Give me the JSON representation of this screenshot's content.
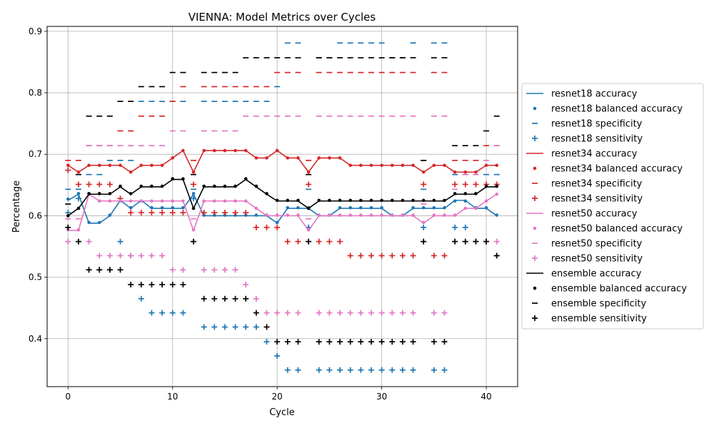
{
  "chart_data": {
    "type": "line",
    "title": "VIENNA: Model Metrics over Cycles",
    "xlabel": "Cycle",
    "ylabel": "Percentage",
    "xlim": [
      -2,
      43
    ],
    "ylim": [
      0.322,
      0.908
    ],
    "xticks": [
      0,
      10,
      20,
      30,
      40
    ],
    "yticks": [
      0.4,
      0.5,
      0.6,
      0.7,
      0.8,
      0.9
    ],
    "grid": true,
    "legend_position": "right",
    "x": [
      0,
      1,
      2,
      3,
      4,
      5,
      6,
      7,
      8,
      9,
      10,
      11,
      12,
      13,
      14,
      15,
      16,
      17,
      18,
      19,
      20,
      21,
      22,
      23,
      24,
      25,
      26,
      27,
      28,
      29,
      30,
      31,
      32,
      33,
      34,
      35,
      36,
      37,
      38,
      39,
      40,
      41
    ],
    "series": [
      {
        "model": "resnet18",
        "color": "#1f77b4",
        "accuracy": [
          0.625,
          0.635,
          0.588,
          0.588,
          0.6,
          0.625,
          0.612,
          0.625,
          0.612,
          0.612,
          0.612,
          0.612,
          0.635,
          0.6,
          0.6,
          0.6,
          0.6,
          0.6,
          0.6,
          0.6,
          0.588,
          0.612,
          0.612,
          0.612,
          0.6,
          0.6,
          0.612,
          0.612,
          0.612,
          0.612,
          0.612,
          0.6,
          0.6,
          0.612,
          0.612,
          0.612,
          0.612,
          0.625,
          0.625,
          0.612,
          0.612,
          0.6
        ],
        "balanced_accuracy": [
          0.627,
          0.636,
          0.589,
          0.589,
          0.601,
          0.624,
          0.613,
          0.624,
          0.613,
          0.613,
          0.613,
          0.613,
          0.636,
          0.601,
          0.601,
          0.601,
          0.601,
          0.601,
          0.601,
          0.601,
          0.589,
          0.613,
          0.613,
          0.613,
          0.601,
          0.601,
          0.613,
          0.613,
          0.613,
          0.613,
          0.613,
          0.601,
          0.601,
          0.613,
          0.613,
          0.613,
          0.613,
          0.624,
          0.624,
          0.613,
          0.613,
          0.601
        ],
        "specificity": [
          0.643,
          0.643,
          0.667,
          0.667,
          0.69,
          0.69,
          0.69,
          0.786,
          0.786,
          0.786,
          0.786,
          0.786,
          0.643,
          0.786,
          0.786,
          0.786,
          0.786,
          0.786,
          0.786,
          0.786,
          0.81,
          0.881,
          0.881,
          0.643,
          0.857,
          0.857,
          0.881,
          0.881,
          0.881,
          0.881,
          0.881,
          0.857,
          0.857,
          0.881,
          0.643,
          0.881,
          0.881,
          0.667,
          0.667,
          0.667,
          0.667,
          0.667
        ],
        "sensitivity": [
          0.605,
          0.628,
          0.512,
          0.512,
          0.512,
          0.558,
          0.535,
          0.465,
          0.442,
          0.442,
          0.442,
          0.442,
          0.628,
          0.419,
          0.419,
          0.419,
          0.419,
          0.419,
          0.419,
          0.395,
          0.372,
          0.349,
          0.349,
          0.581,
          0.349,
          0.349,
          0.349,
          0.349,
          0.349,
          0.349,
          0.349,
          0.349,
          0.349,
          0.349,
          0.581,
          0.349,
          0.349,
          0.581,
          0.581,
          0.558,
          0.558,
          0.535
        ]
      },
      {
        "model": "resnet34",
        "color": "#d62728",
        "accuracy": [
          0.682,
          0.671,
          0.682,
          0.682,
          0.682,
          0.682,
          0.671,
          0.682,
          0.682,
          0.682,
          0.694,
          0.706,
          0.671,
          0.706,
          0.706,
          0.706,
          0.706,
          0.706,
          0.694,
          0.694,
          0.706,
          0.694,
          0.694,
          0.671,
          0.694,
          0.694,
          0.694,
          0.682,
          0.682,
          0.682,
          0.682,
          0.682,
          0.682,
          0.682,
          0.671,
          0.682,
          0.682,
          0.671,
          0.671,
          0.671,
          0.682,
          0.682
        ],
        "balanced_accuracy": [
          0.682,
          0.671,
          0.682,
          0.682,
          0.682,
          0.682,
          0.671,
          0.682,
          0.682,
          0.682,
          0.694,
          0.706,
          0.671,
          0.706,
          0.706,
          0.706,
          0.706,
          0.706,
          0.694,
          0.694,
          0.706,
          0.694,
          0.694,
          0.671,
          0.694,
          0.694,
          0.694,
          0.682,
          0.682,
          0.682,
          0.682,
          0.682,
          0.682,
          0.682,
          0.671,
          0.682,
          0.682,
          0.671,
          0.671,
          0.671,
          0.682,
          0.682
        ],
        "specificity": [
          0.69,
          0.69,
          0.714,
          0.714,
          0.714,
          0.738,
          0.738,
          0.762,
          0.762,
          0.762,
          0.786,
          0.81,
          0.69,
          0.81,
          0.81,
          0.81,
          0.81,
          0.81,
          0.81,
          0.81,
          0.833,
          0.833,
          0.833,
          0.69,
          0.833,
          0.833,
          0.833,
          0.833,
          0.833,
          0.833,
          0.833,
          0.833,
          0.833,
          0.833,
          0.69,
          0.833,
          0.833,
          0.69,
          0.69,
          0.69,
          0.714,
          0.714
        ],
        "sensitivity": [
          0.674,
          0.651,
          0.651,
          0.651,
          0.651,
          0.628,
          0.605,
          0.605,
          0.605,
          0.605,
          0.605,
          0.605,
          0.651,
          0.605,
          0.605,
          0.605,
          0.605,
          0.605,
          0.581,
          0.581,
          0.581,
          0.558,
          0.558,
          0.651,
          0.558,
          0.558,
          0.558,
          0.535,
          0.535,
          0.535,
          0.535,
          0.535,
          0.535,
          0.535,
          0.651,
          0.535,
          0.535,
          0.651,
          0.651,
          0.651,
          0.651,
          0.651
        ]
      },
      {
        "model": "resnet50",
        "color": "#e377c2",
        "accuracy": [
          0.576,
          0.576,
          0.635,
          0.624,
          0.624,
          0.624,
          0.624,
          0.624,
          0.624,
          0.624,
          0.624,
          0.624,
          0.576,
          0.624,
          0.624,
          0.624,
          0.624,
          0.624,
          0.612,
          0.6,
          0.6,
          0.6,
          0.6,
          0.576,
          0.6,
          0.6,
          0.6,
          0.6,
          0.6,
          0.6,
          0.6,
          0.6,
          0.6,
          0.6,
          0.588,
          0.6,
          0.6,
          0.6,
          0.612,
          0.612,
          0.624,
          0.635
        ],
        "balanced_accuracy": [
          0.577,
          0.577,
          0.635,
          0.624,
          0.624,
          0.624,
          0.624,
          0.624,
          0.624,
          0.624,
          0.624,
          0.624,
          0.577,
          0.624,
          0.624,
          0.624,
          0.624,
          0.624,
          0.612,
          0.601,
          0.601,
          0.601,
          0.601,
          0.577,
          0.601,
          0.601,
          0.601,
          0.601,
          0.601,
          0.601,
          0.601,
          0.601,
          0.601,
          0.601,
          0.589,
          0.601,
          0.601,
          0.601,
          0.612,
          0.612,
          0.624,
          0.635
        ],
        "specificity": [
          0.595,
          0.595,
          0.714,
          0.714,
          0.714,
          0.714,
          0.714,
          0.714,
          0.714,
          0.714,
          0.738,
          0.738,
          0.595,
          0.738,
          0.738,
          0.738,
          0.738,
          0.762,
          0.762,
          0.762,
          0.762,
          0.762,
          0.762,
          0.595,
          0.762,
          0.762,
          0.762,
          0.762,
          0.762,
          0.762,
          0.762,
          0.762,
          0.762,
          0.762,
          0.619,
          0.762,
          0.762,
          0.643,
          0.667,
          0.667,
          0.69,
          0.714
        ],
        "sensitivity": [
          0.558,
          0.558,
          0.558,
          0.535,
          0.535,
          0.535,
          0.535,
          0.535,
          0.535,
          0.535,
          0.512,
          0.512,
          0.558,
          0.512,
          0.512,
          0.512,
          0.512,
          0.488,
          0.465,
          0.442,
          0.442,
          0.442,
          0.442,
          0.558,
          0.442,
          0.442,
          0.442,
          0.442,
          0.442,
          0.442,
          0.442,
          0.442,
          0.442,
          0.442,
          0.558,
          0.442,
          0.442,
          0.558,
          0.558,
          0.558,
          0.558,
          0.558
        ]
      },
      {
        "model": "ensemble",
        "color": "#000000",
        "accuracy": [
          0.6,
          0.612,
          0.635,
          0.635,
          0.635,
          0.647,
          0.635,
          0.647,
          0.647,
          0.647,
          0.659,
          0.659,
          0.612,
          0.647,
          0.647,
          0.647,
          0.647,
          0.659,
          0.647,
          0.635,
          0.624,
          0.624,
          0.624,
          0.612,
          0.624,
          0.624,
          0.624,
          0.624,
          0.624,
          0.624,
          0.624,
          0.624,
          0.624,
          0.624,
          0.624,
          0.624,
          0.624,
          0.635,
          0.635,
          0.635,
          0.647,
          0.647
        ],
        "balanced_accuracy": [
          0.6,
          0.612,
          0.636,
          0.636,
          0.636,
          0.648,
          0.636,
          0.648,
          0.648,
          0.648,
          0.66,
          0.66,
          0.612,
          0.648,
          0.648,
          0.648,
          0.648,
          0.66,
          0.648,
          0.636,
          0.625,
          0.625,
          0.625,
          0.612,
          0.625,
          0.625,
          0.625,
          0.625,
          0.625,
          0.625,
          0.625,
          0.625,
          0.625,
          0.625,
          0.625,
          0.625,
          0.625,
          0.636,
          0.636,
          0.636,
          0.648,
          0.648
        ],
        "specificity": [
          0.619,
          0.667,
          0.762,
          0.762,
          0.762,
          0.786,
          0.786,
          0.81,
          0.81,
          0.81,
          0.833,
          0.833,
          0.667,
          0.833,
          0.833,
          0.833,
          0.833,
          0.857,
          0.857,
          0.857,
          0.857,
          0.857,
          0.857,
          0.667,
          0.857,
          0.857,
          0.857,
          0.857,
          0.857,
          0.857,
          0.857,
          0.857,
          0.857,
          0.857,
          0.69,
          0.857,
          0.857,
          0.714,
          0.714,
          0.714,
          0.738,
          0.762
        ],
        "sensitivity": [
          0.581,
          0.558,
          0.512,
          0.512,
          0.512,
          0.512,
          0.488,
          0.488,
          0.488,
          0.488,
          0.488,
          0.488,
          0.558,
          0.465,
          0.465,
          0.465,
          0.465,
          0.465,
          0.442,
          0.419,
          0.395,
          0.395,
          0.395,
          0.558,
          0.395,
          0.395,
          0.395,
          0.395,
          0.395,
          0.395,
          0.395,
          0.395,
          0.395,
          0.395,
          0.558,
          0.395,
          0.395,
          0.558,
          0.558,
          0.558,
          0.558,
          0.535
        ]
      }
    ],
    "legend": [
      {
        "label": "resnet18 accuracy",
        "model": 0,
        "metric": "accuracy"
      },
      {
        "label": "resnet18 balanced accuracy",
        "model": 0,
        "metric": "balanced_accuracy"
      },
      {
        "label": "resnet18 specificity",
        "model": 0,
        "metric": "specificity"
      },
      {
        "label": "resnet18 sensitivity",
        "model": 0,
        "metric": "sensitivity"
      },
      {
        "label": "resnet34 accuracy",
        "model": 1,
        "metric": "accuracy"
      },
      {
        "label": "resnet34 balanced accuracy",
        "model": 1,
        "metric": "balanced_accuracy"
      },
      {
        "label": "resnet34 specificity",
        "model": 1,
        "metric": "specificity"
      },
      {
        "label": "resnet34 sensitivity",
        "model": 1,
        "metric": "sensitivity"
      },
      {
        "label": "resnet50 accuracy",
        "model": 2,
        "metric": "accuracy"
      },
      {
        "label": "resnet50 balanced accuracy",
        "model": 2,
        "metric": "balanced_accuracy"
      },
      {
        "label": "resnet50 specificity",
        "model": 2,
        "metric": "specificity"
      },
      {
        "label": "resnet50 sensitivity",
        "model": 2,
        "metric": "sensitivity"
      },
      {
        "label": "ensemble accuracy",
        "model": 3,
        "metric": "accuracy"
      },
      {
        "label": "ensemble balanced accuracy",
        "model": 3,
        "metric": "balanced_accuracy"
      },
      {
        "label": "ensemble specificity",
        "model": 3,
        "metric": "specificity"
      },
      {
        "label": "ensemble sensitivity",
        "model": 3,
        "metric": "sensitivity"
      }
    ]
  }
}
